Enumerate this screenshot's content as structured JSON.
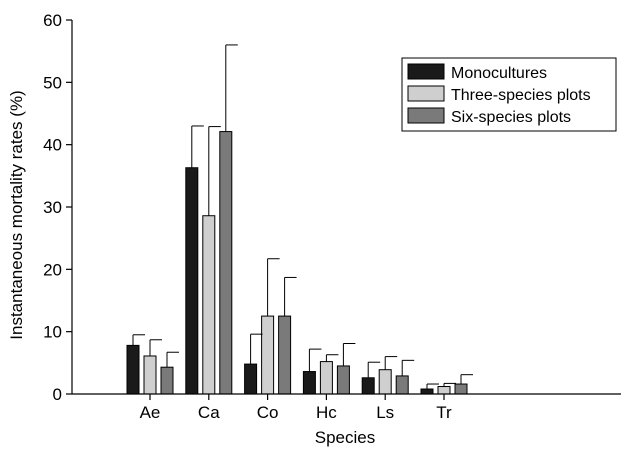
{
  "chart_data": {
    "type": "bar",
    "title": "",
    "xlabel": "Species",
    "ylabel": "Instantaneous mortality rates (%)",
    "ylim": [
      0,
      60
    ],
    "yticks": [
      0,
      10,
      20,
      30,
      40,
      50,
      60
    ],
    "categories": [
      "Ae",
      "Ca",
      "Co",
      "Hc",
      "Ls",
      "Tr"
    ],
    "legend_position": "top-right",
    "grid": false,
    "series": [
      {
        "name": "Monocultures",
        "color": "#1a1a1a",
        "values": [
          7.8,
          36.3,
          4.8,
          3.6,
          2.6,
          0.8
        ],
        "errors": [
          1.7,
          6.7,
          4.8,
          3.6,
          2.5,
          0.8
        ]
      },
      {
        "name": "Three-species plots",
        "color": "#cfcfcf",
        "values": [
          6.1,
          28.6,
          12.5,
          5.2,
          3.9,
          1.2
        ],
        "errors": [
          2.6,
          14.3,
          9.2,
          1.1,
          2.1,
          0.5
        ]
      },
      {
        "name": "Six-species plots",
        "color": "#7a7a7a",
        "values": [
          4.3,
          42.1,
          12.5,
          4.5,
          2.9,
          1.6
        ],
        "errors": [
          2.4,
          13.9,
          6.2,
          3.6,
          2.5,
          1.5
        ]
      }
    ]
  }
}
